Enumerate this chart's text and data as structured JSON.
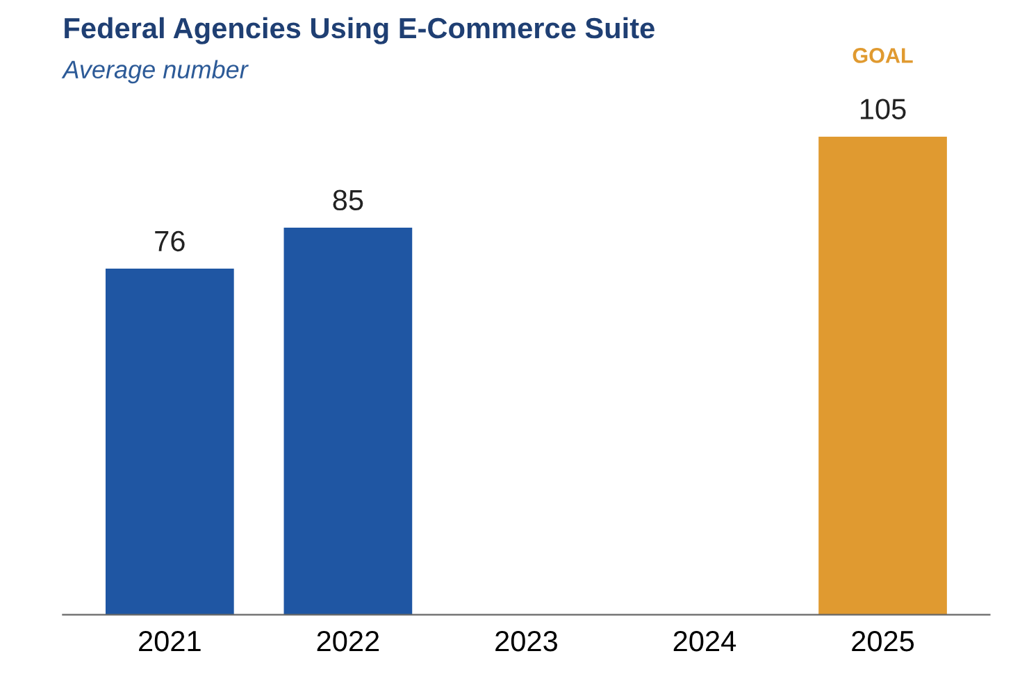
{
  "chart_data": {
    "type": "bar",
    "title": "Federal Agencies Using E-Commerce Suite",
    "subtitle": "Average number",
    "categories": [
      "2021",
      "2022",
      "2023",
      "2024",
      "2025"
    ],
    "values": [
      76,
      85,
      null,
      null,
      105
    ],
    "colors": [
      "#1f56a3",
      "#1f56a3",
      "#1f56a3",
      "#1f56a3",
      "#e09a30"
    ],
    "data_labels": true,
    "grid": false,
    "legend": false,
    "tick_labels": "x",
    "annotations": [
      "GOAL"
    ]
  }
}
